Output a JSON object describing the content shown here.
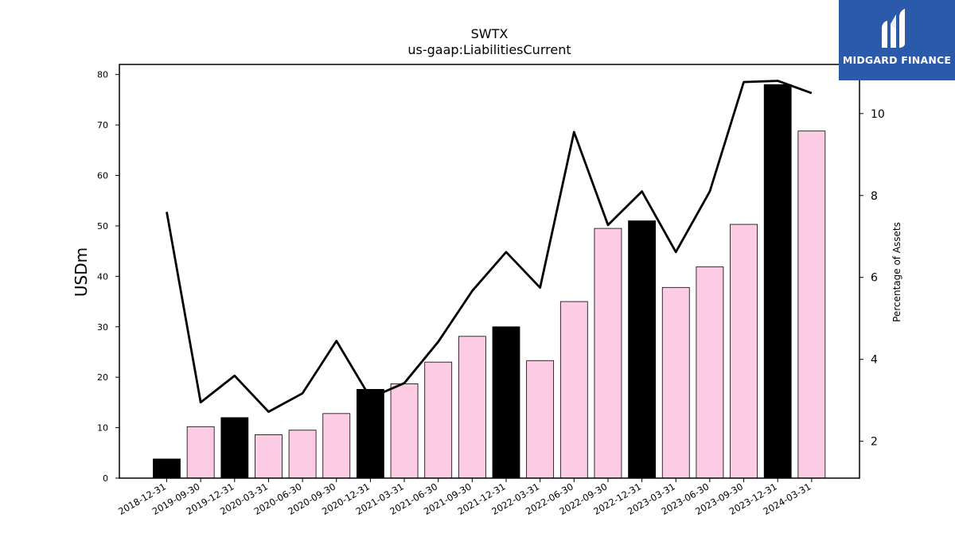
{
  "chart_data": {
    "type": "bar",
    "title": "SWTX",
    "subtitle": "us-gaap:LiabilitiesCurrent",
    "ylabel": "USDm",
    "y2label": "Percentage of Assets",
    "ylim": [
      0,
      82
    ],
    "y2lim": [
      1.1,
      11.2
    ],
    "yticks": [
      0,
      10,
      20,
      30,
      40,
      50,
      60,
      70,
      80
    ],
    "y2ticks": [
      2,
      4,
      6,
      8,
      10
    ],
    "grid": false,
    "categories": [
      "2018-12-31",
      "2019-09-30",
      "2019-12-31",
      "2020-03-31",
      "2020-06-30",
      "2020-09-30",
      "2020-12-31",
      "2021-03-31",
      "2021-06-30",
      "2021-09-30",
      "2021-12-31",
      "2022-03-31",
      "2022-06-30",
      "2022-09-30",
      "2022-12-31",
      "2023-03-31",
      "2023-06-30",
      "2023-09-30",
      "2023-12-31",
      "2024-03-31"
    ],
    "series": [
      {
        "type": "bar",
        "axis": "left",
        "values": [
          3.8,
          10.2,
          12.0,
          8.6,
          9.5,
          12.8,
          17.6,
          18.7,
          23.0,
          28.1,
          30.0,
          23.3,
          35.0,
          49.5,
          51.0,
          37.8,
          41.9,
          50.3,
          78.0,
          68.8
        ],
        "colors": [
          "#000000",
          "#fccbe4",
          "#000000",
          "#fccbe4",
          "#fccbe4",
          "#fccbe4",
          "#000000",
          "#fccbe4",
          "#fccbe4",
          "#fccbe4",
          "#000000",
          "#fccbe4",
          "#fccbe4",
          "#fccbe4",
          "#000000",
          "#fccbe4",
          "#fccbe4",
          "#fccbe4",
          "#000000",
          "#fccbe4"
        ]
      },
      {
        "type": "line",
        "axis": "right",
        "color": "#000000",
        "values": [
          7.6,
          2.95,
          3.6,
          2.72,
          3.17,
          4.45,
          3.06,
          3.42,
          4.43,
          5.67,
          6.62,
          5.75,
          9.55,
          7.28,
          8.1,
          6.62,
          8.1,
          10.77,
          10.8,
          10.5
        ]
      }
    ]
  },
  "logo": {
    "text": "MIDGARD FINANCE",
    "bg_color": "#2b5aab"
  }
}
